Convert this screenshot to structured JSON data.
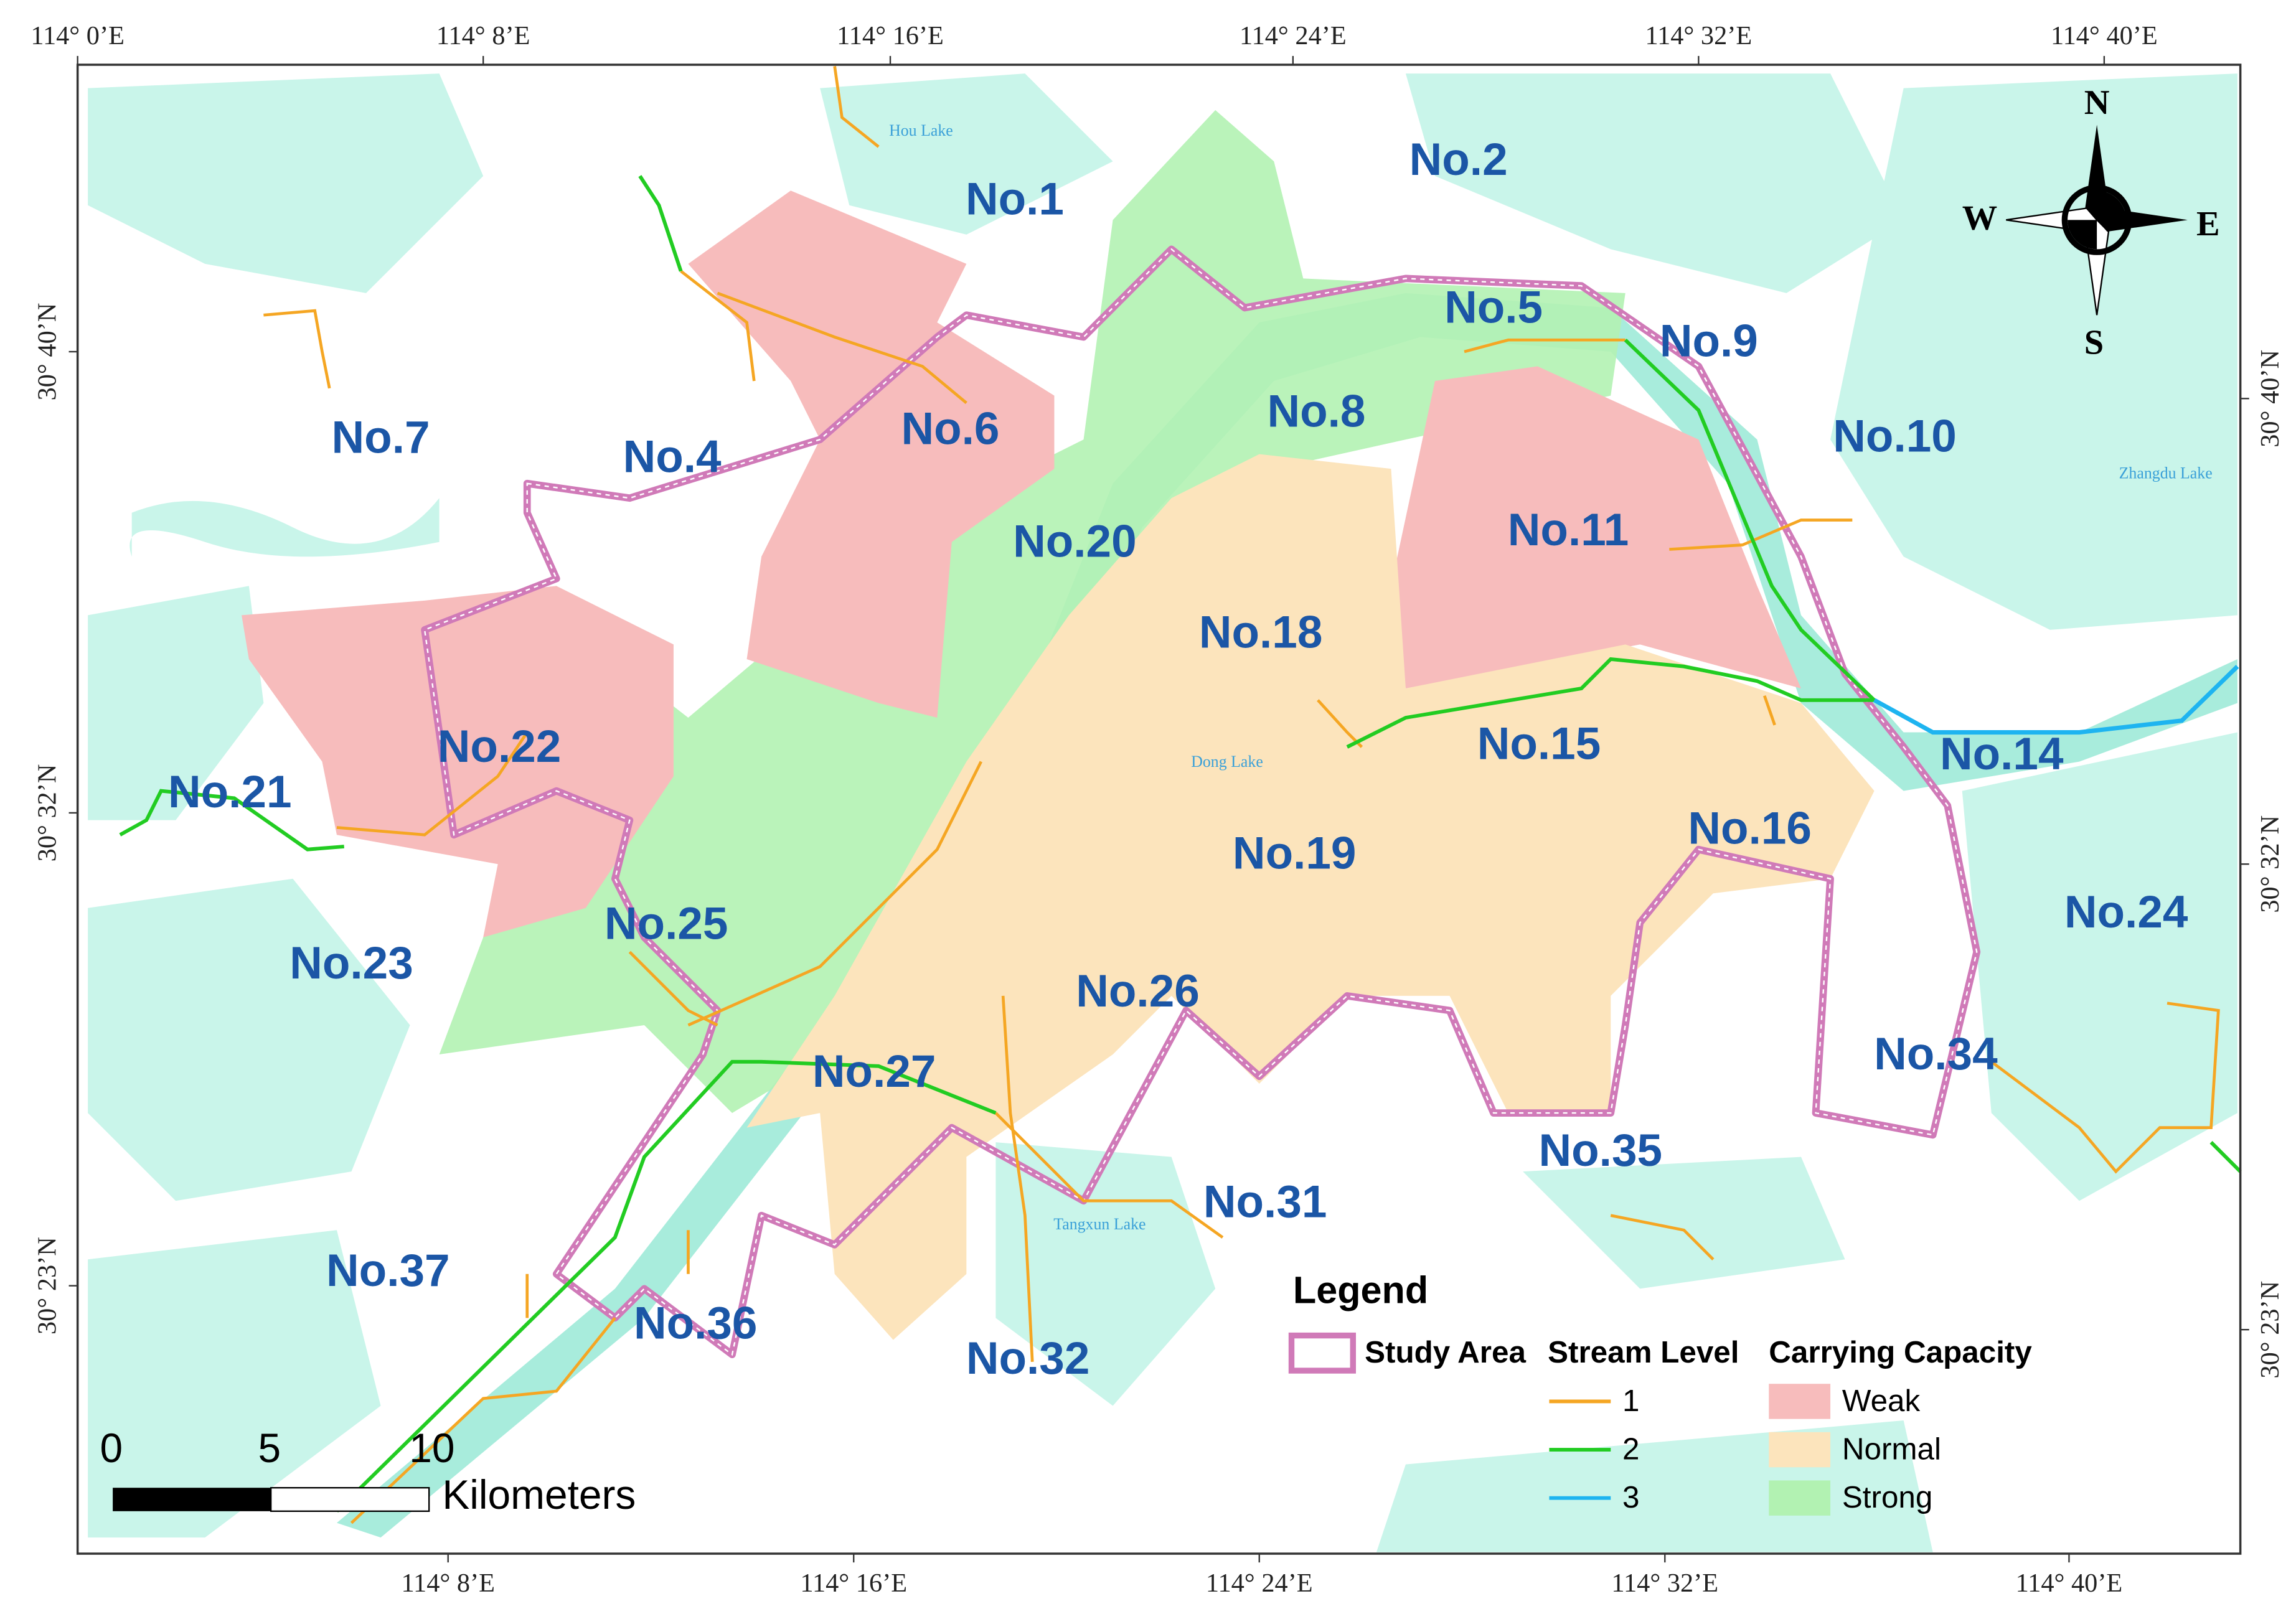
{
  "map": {
    "top_labels": [
      "114° 0’E",
      "114° 8’E",
      "114° 16’E",
      "114° 24’E",
      "114° 32’E",
      "114° 40’E"
    ],
    "bottom_labels": [
      "114° 8’E",
      "114° 16’E",
      "114° 24’E",
      "114° 32’E",
      "114° 40’E"
    ],
    "left_labels": [
      "30° 40’N",
      "30° 32’N",
      "30° 23’N"
    ],
    "right_labels": [
      "30° 40’N",
      "30° 32’N",
      "30° 23’N"
    ],
    "zones": [
      "No.1",
      "No.2",
      "No.4",
      "No.5",
      "No.6",
      "No.7",
      "No.8",
      "No.9",
      "No.10",
      "No.11",
      "No.14",
      "No.15",
      "No.16",
      "No.18",
      "No.19",
      "No.20",
      "No.21",
      "No.22",
      "No.23",
      "No.24",
      "No.25",
      "No.26",
      "No.27",
      "No.31",
      "No.32",
      "No.34",
      "No.35",
      "No.36",
      "No.37"
    ],
    "lakes": [
      "Hou Lake",
      "Zhangdu Lake",
      "Dong Lake",
      "Tangxun Lake"
    ],
    "compass": {
      "north": "N",
      "south": "S",
      "west": "W",
      "east": "E"
    },
    "legend": {
      "title": "Legend",
      "study_area": "Study Area",
      "stream_title": "Stream Level",
      "streams": [
        "1",
        "2",
        "3"
      ],
      "capacity_title": "Carrying Capacity",
      "capacity": [
        "Weak",
        "Normal",
        "Strong"
      ]
    },
    "scale": {
      "ticks": [
        "0",
        "5",
        "10"
      ],
      "unit": "Kilometers"
    }
  }
}
